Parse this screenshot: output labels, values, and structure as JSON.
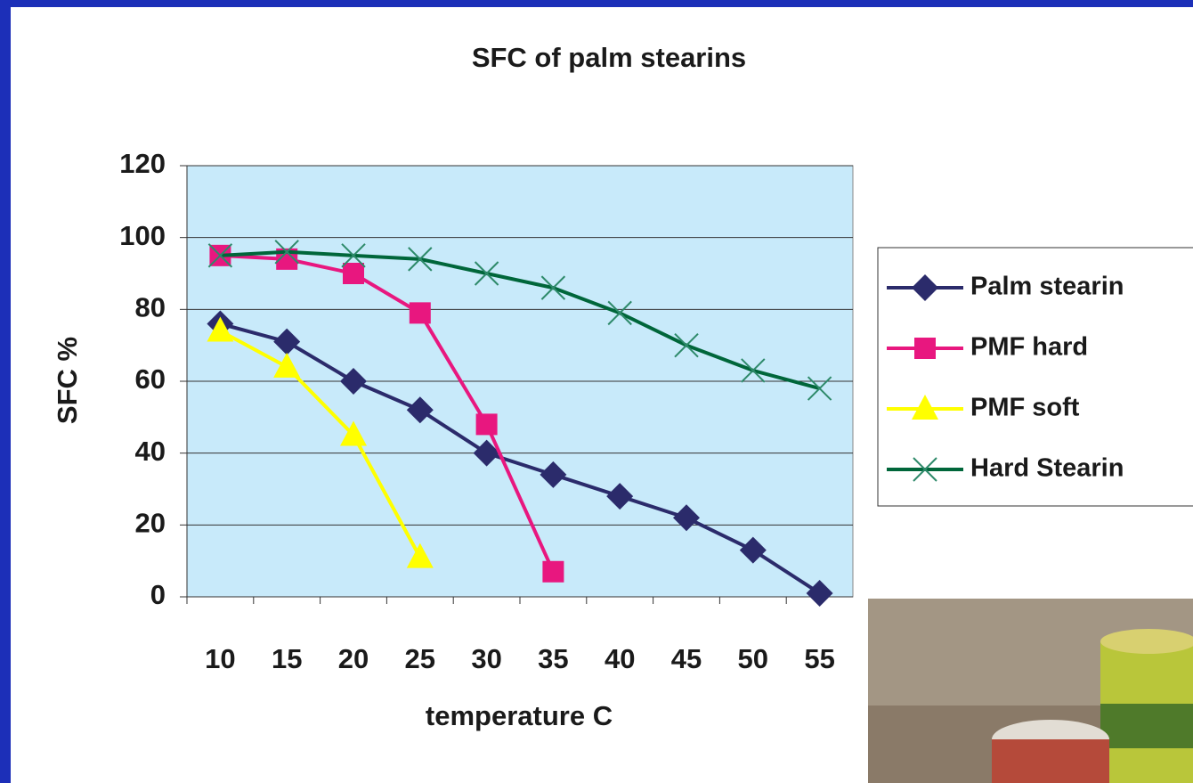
{
  "chart_data": {
    "type": "line",
    "title": "SFC of palm stearins",
    "x_label": "temperature C",
    "y_label": "SFC %",
    "categories": [
      "10",
      "15",
      "20",
      "25",
      "30",
      "35",
      "40",
      "45",
      "50",
      "55"
    ],
    "series": [
      {
        "name": "Palm stearin",
        "color": "#2b2b6b",
        "marker": "diamond",
        "values": [
          76,
          71,
          60,
          52,
          40,
          34,
          28,
          22,
          13,
          1
        ]
      },
      {
        "name": "PMF hard",
        "color": "#e8177f",
        "marker": "square",
        "values": [
          95,
          94,
          90,
          79,
          48,
          7,
          null,
          null,
          null,
          null
        ]
      },
      {
        "name": "PMF soft",
        "color": "#ffff00",
        "marker": "triangle",
        "values": [
          74,
          64,
          45,
          11,
          null,
          null,
          null,
          null,
          null,
          null
        ]
      },
      {
        "name": "Hard Stearin",
        "color": "#00663a",
        "marker": "x",
        "values": [
          95,
          96,
          95,
          94,
          90,
          86,
          79,
          70,
          63,
          58
        ]
      }
    ],
    "ylim": [
      0,
      120
    ],
    "yticks": [
      0,
      20,
      40,
      60,
      80,
      100,
      120
    ],
    "grid": true,
    "legend": "right",
    "plot_background": "#c8eafa"
  }
}
